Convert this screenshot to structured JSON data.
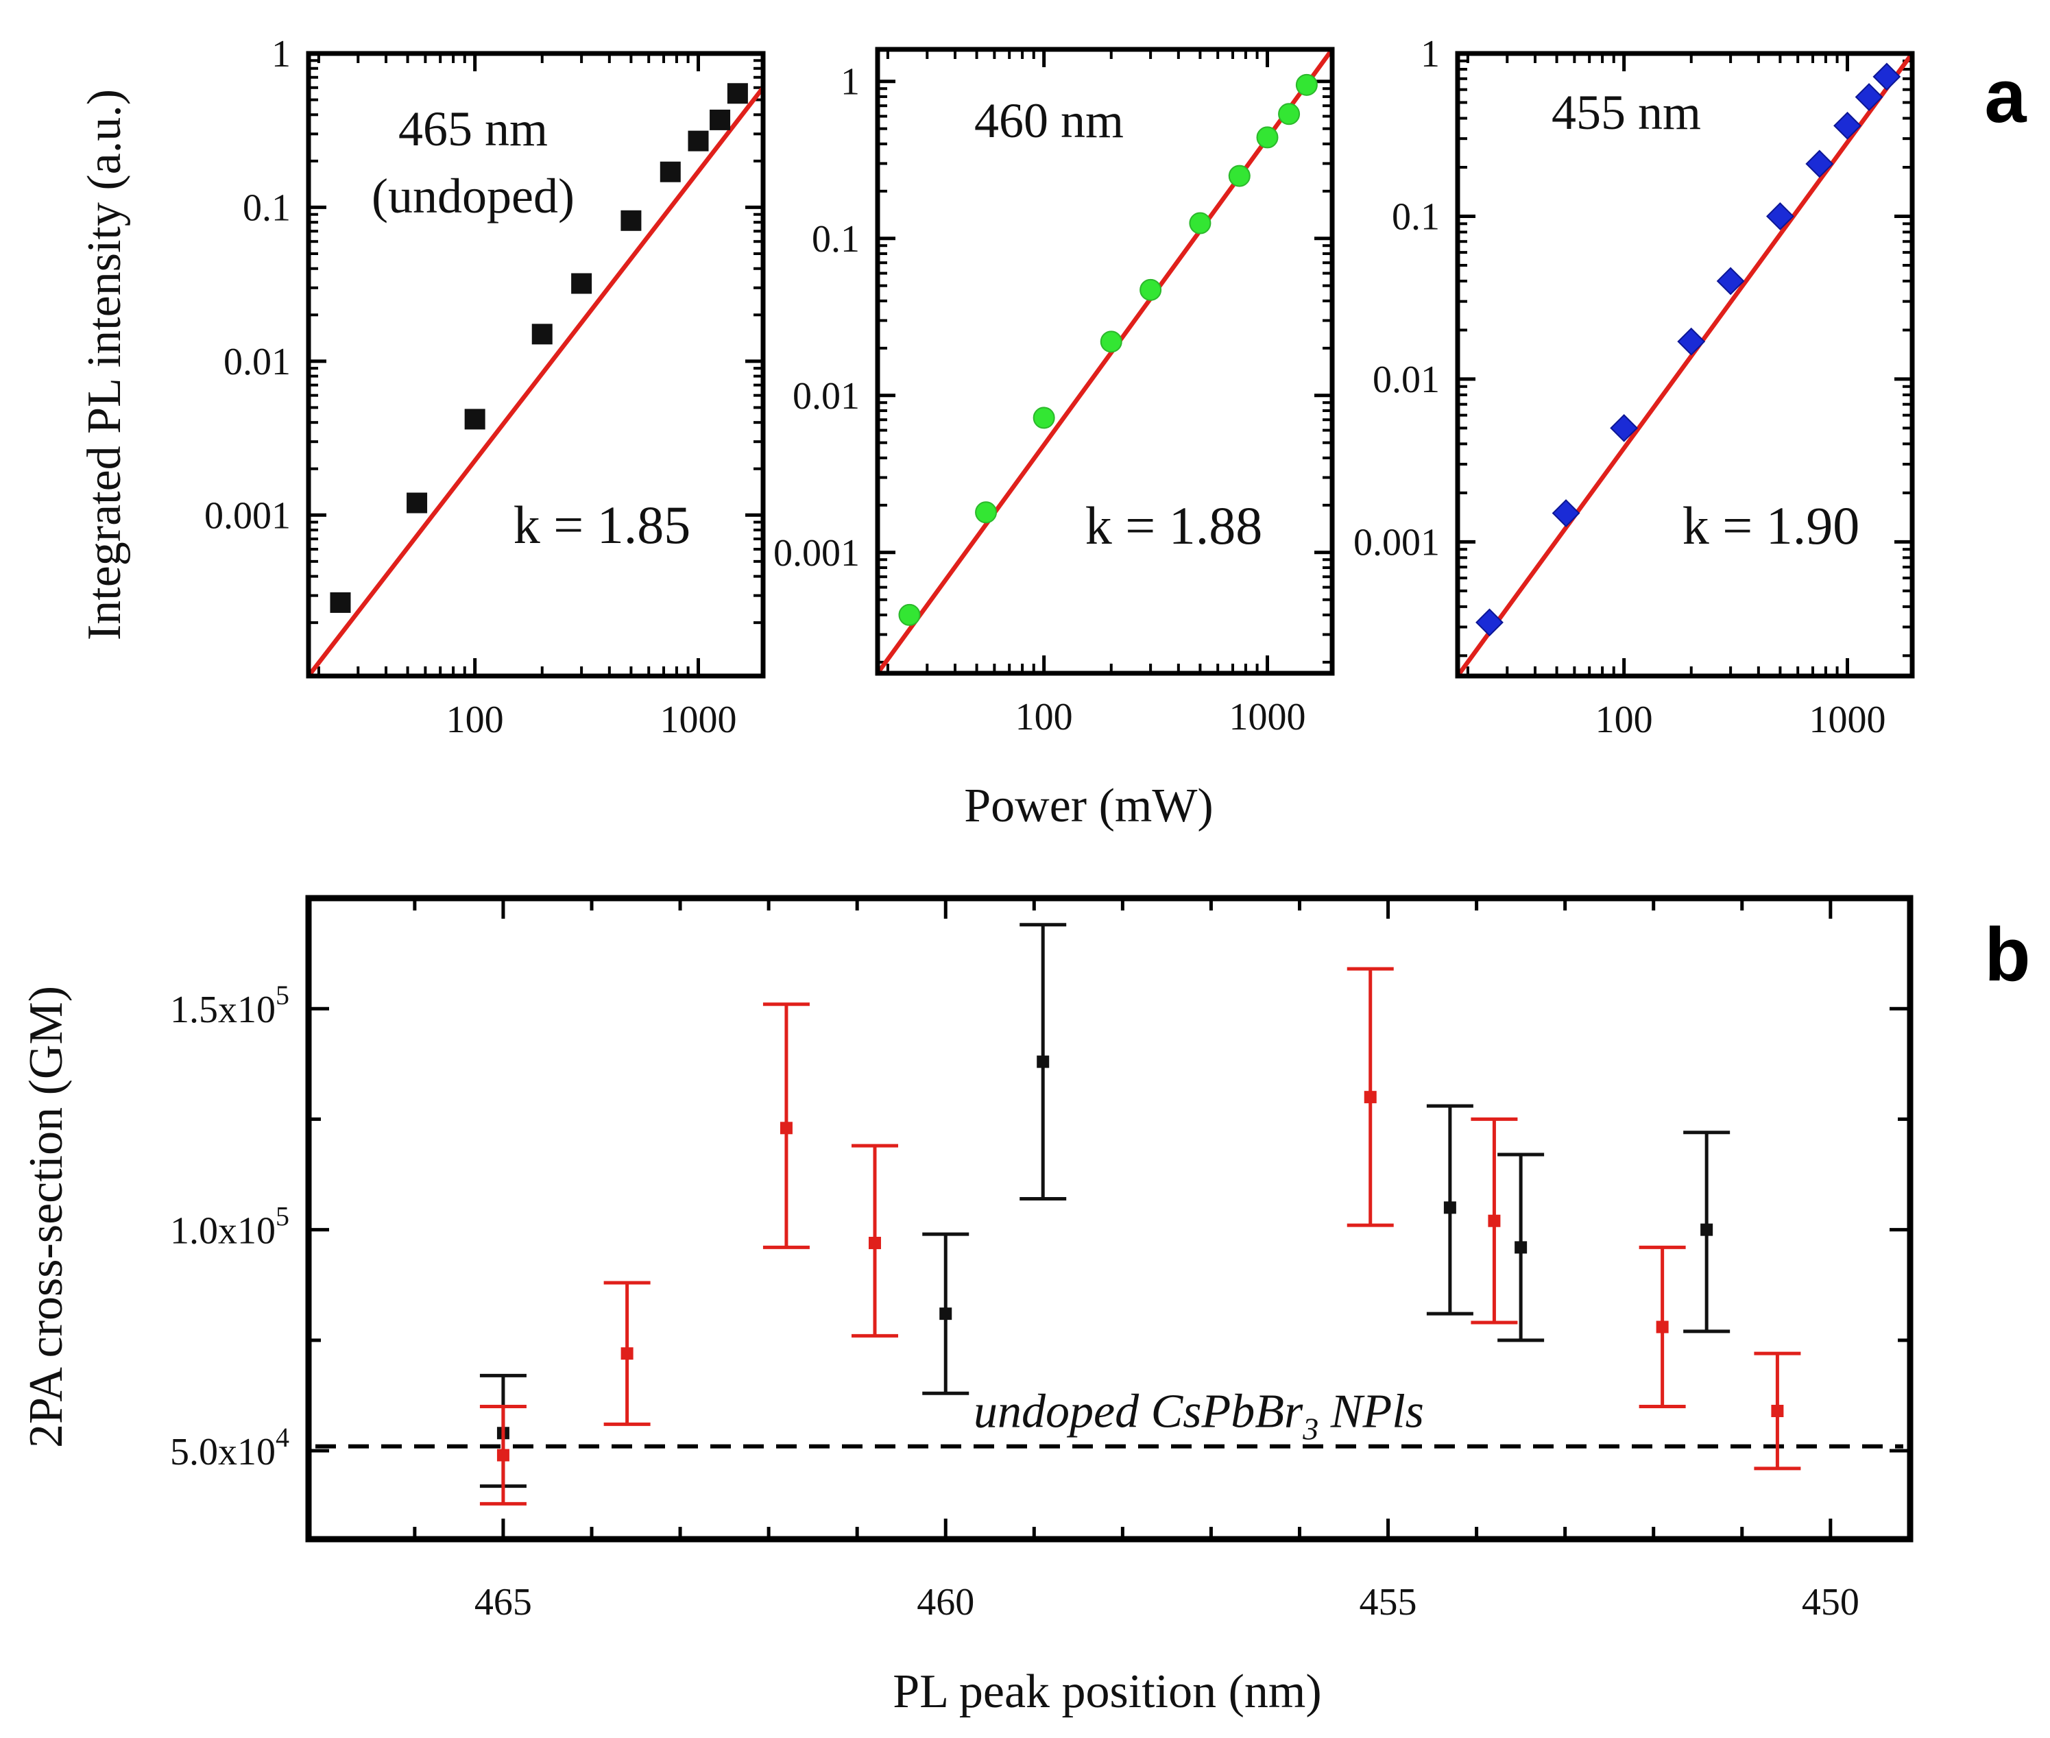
{
  "colors": {
    "fit_line": "#e0201b",
    "marker_undoped": "#111111",
    "marker_460": "#33e633",
    "marker_455": "#1a2bd6",
    "errorbar_black": "#111111",
    "errorbar_red": "#e0201b",
    "axes": "#000000"
  },
  "chart_data": [
    {
      "id": "a-465",
      "panel": "a",
      "type": "scatter",
      "xscale": "log",
      "yscale": "log",
      "xlim": [
        18,
        1950
      ],
      "ylim": [
        9e-05,
        1
      ],
      "xticks": [
        100,
        1000
      ],
      "xtick_labels": [
        "100",
        "1000"
      ],
      "yticks": [
        0.001,
        0.01,
        0.1,
        1
      ],
      "ytick_labels": [
        "0.001",
        "0.01",
        "0.1",
        "1"
      ],
      "annotation": [
        "465 nm",
        "(undoped)"
      ],
      "k_label": "k = 1.85",
      "marker": "square",
      "x": [
        25,
        55,
        100,
        200,
        300,
        500,
        750,
        1000,
        1250,
        1500
      ],
      "y": [
        0.00027,
        0.0012,
        0.0042,
        0.015,
        0.032,
        0.082,
        0.17,
        0.27,
        0.37,
        0.55
      ],
      "fit": {
        "slope": 1.85,
        "x": [
          18,
          1950
        ],
        "y": [
          9e-05,
          0.6
        ]
      }
    },
    {
      "id": "a-460",
      "panel": "a",
      "type": "scatter",
      "xscale": "log",
      "yscale": "log",
      "xlim": [
        18,
        1950
      ],
      "ylim": [
        0.00017,
        1.6
      ],
      "xticks": [
        100,
        1000
      ],
      "xtick_labels": [
        "100",
        "1000"
      ],
      "yticks": [
        0.001,
        0.01,
        0.1,
        1
      ],
      "ytick_labels": [
        "0.001",
        "0.01",
        "0.1",
        "1"
      ],
      "annotation": [
        "460 nm"
      ],
      "k_label": "k = 1.88",
      "marker": "circle",
      "x": [
        25,
        55,
        100,
        200,
        300,
        500,
        750,
        1000,
        1250,
        1500
      ],
      "y": [
        0.0004,
        0.0018,
        0.0072,
        0.022,
        0.047,
        0.125,
        0.25,
        0.44,
        0.62,
        0.95
      ],
      "fit": {
        "slope": 1.88,
        "x": [
          18,
          1950
        ],
        "y": [
          0.00017,
          1.6
        ]
      }
    },
    {
      "id": "a-455",
      "panel": "a",
      "type": "scatter",
      "xscale": "log",
      "yscale": "log",
      "xlim": [
        18,
        1950
      ],
      "ylim": [
        0.00015,
        1
      ],
      "xticks": [
        100,
        1000
      ],
      "xtick_labels": [
        "100",
        "1000"
      ],
      "yticks": [
        0.001,
        0.01,
        0.1,
        1
      ],
      "ytick_labels": [
        "0.001",
        "0.01",
        "0.1",
        "1"
      ],
      "annotation": [
        "455 nm"
      ],
      "k_label": "k = 1.90",
      "marker": "diamond",
      "x": [
        25,
        55,
        100,
        200,
        300,
        500,
        750,
        1000,
        1250,
        1500
      ],
      "y": [
        0.00032,
        0.0015,
        0.005,
        0.017,
        0.04,
        0.1,
        0.21,
        0.36,
        0.54,
        0.72
      ],
      "fit": {
        "slope": 1.9,
        "x": [
          18,
          1950
        ],
        "y": [
          0.00015,
          1
        ]
      }
    },
    {
      "id": "b",
      "panel": "b",
      "type": "scatter",
      "xlim": [
        467.2,
        449.1
      ],
      "ylim": [
        30000,
        175000
      ],
      "xticks": [
        465,
        460,
        455,
        450
      ],
      "xtick_labels": [
        "465",
        "460",
        "455",
        "450"
      ],
      "yticks": [
        50000,
        100000,
        150000
      ],
      "ytick_labels": [
        {
          "base": "5.0x10",
          "exp": "4"
        },
        {
          "base": "1.0x10",
          "exp": "5"
        },
        {
          "base": "1.5x10",
          "exp": "5"
        }
      ],
      "reference_line": {
        "y": 51000,
        "style": "dashed",
        "label": "undoped CsPbBr",
        "label_sub": "3",
        "label_tail": " NPls"
      },
      "series": [
        {
          "name": "black",
          "x": [
            465.0,
            460.0,
            458.9,
            453.5,
            454.3,
            451.4
          ],
          "y": [
            54000,
            81000,
            138000,
            96000,
            105000,
            100000
          ],
          "err_low": [
            42000,
            63000,
            107000,
            75000,
            81000,
            77000
          ],
          "err_high": [
            67000,
            99000,
            169000,
            117000,
            128000,
            122000
          ]
        },
        {
          "name": "red",
          "x": [
            465.0,
            463.6,
            461.8,
            460.8,
            455.2,
            453.8,
            451.9,
            450.6
          ],
          "y": [
            49000,
            72000,
            123000,
            97000,
            130000,
            102000,
            78000,
            59000
          ],
          "err_low": [
            38000,
            56000,
            96000,
            76000,
            101000,
            79000,
            60000,
            46000
          ],
          "err_high": [
            60000,
            88000,
            151000,
            119000,
            159000,
            125000,
            96000,
            72000
          ]
        }
      ]
    }
  ],
  "labels": {
    "panel_a_letter": "a",
    "panel_b_letter": "b",
    "a_ylabel": "Integrated PL intensity (a.u.)",
    "a_xlabel": "Power (mW)",
    "b_ylabel": "2PA cross-section (GM)",
    "b_xlabel": "PL peak position (nm)"
  }
}
